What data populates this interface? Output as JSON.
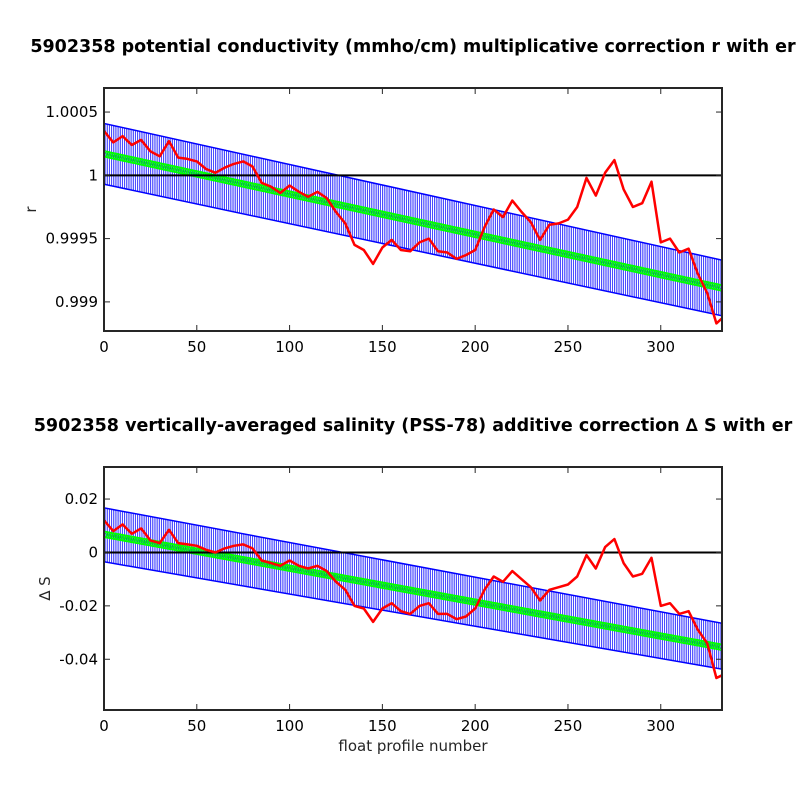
{
  "chart_data": [
    {
      "type": "line",
      "title": "5902358 potential conductivity (mmho/cm) multiplicative correction r with er",
      "xlabel": "",
      "ylabel": "r",
      "xlim": [
        0,
        333
      ],
      "ylim": [
        0.99877,
        1.00069
      ],
      "xticks": [
        "0",
        "50",
        "100",
        "150",
        "200",
        "250",
        "300"
      ],
      "yticks": [
        "0.999",
        "0.9995",
        "1",
        "1.0005"
      ],
      "grid": false,
      "reference_line": 1.0,
      "colors": {
        "correction": "#ff0000",
        "fit": "#00ff00",
        "error": "#0000ff",
        "reference": "#000000"
      },
      "fit": {
        "x": [
          0,
          333
        ],
        "y": [
          1.00017,
          0.99911
        ]
      },
      "error_band": {
        "x": [
          0,
          333
        ],
        "upper": [
          1.00041,
          0.99933
        ],
        "lower": [
          0.99993,
          0.99889
        ]
      },
      "series": [
        {
          "x": [
            0,
            5,
            10,
            15,
            20,
            25,
            30,
            35,
            40,
            45,
            50,
            55,
            60,
            65,
            70,
            75,
            80,
            85,
            90,
            95,
            100,
            105,
            110,
            115,
            120,
            125,
            130,
            135,
            140,
            145,
            150,
            155,
            160,
            165,
            170,
            175,
            180,
            185,
            190,
            195,
            200,
            205,
            210,
            215,
            220,
            225,
            230,
            235,
            240,
            245,
            250,
            255,
            260,
            265,
            270,
            275,
            280,
            285,
            290,
            295,
            300,
            305,
            310,
            315,
            320,
            325,
            330,
            333
          ],
          "y": [
            1.00035,
            1.00026,
            1.00031,
            1.00024,
            1.00028,
            1.00019,
            1.00015,
            1.00027,
            1.00014,
            1.00013,
            1.00011,
            1.00005,
            1.00002,
            1.00006,
            1.00009,
            1.00011,
            1.00007,
            0.99994,
            0.99991,
            0.99986,
            0.99992,
            0.99987,
            0.99983,
            0.99987,
            0.99982,
            0.99971,
            0.99962,
            0.99945,
            0.99941,
            0.9993,
            0.99943,
            0.99949,
            0.99941,
            0.9994,
            0.99947,
            0.9995,
            0.9994,
            0.99939,
            0.99934,
            0.99937,
            0.99941,
            0.99959,
            0.99973,
            0.99967,
            0.9998,
            0.99971,
            0.99963,
            0.99949,
            0.99961,
            0.99962,
            0.99965,
            0.99975,
            0.99998,
            0.99984,
            1.00002,
            1.00012,
            0.99989,
            0.99975,
            0.99978,
            0.99995,
            0.99947,
            0.9995,
            0.99939,
            0.99942,
            0.99922,
            0.99907,
            0.99883,
            0.99887
          ]
        }
      ]
    },
    {
      "type": "line",
      "title": "5902358 vertically-averaged salinity (PSS-78) additive correction ∆ S with er",
      "xlabel": "float profile number",
      "ylabel": "∆ S",
      "xlim": [
        0,
        333
      ],
      "ylim": [
        -0.059,
        0.032
      ],
      "xticks": [
        "0",
        "50",
        "100",
        "150",
        "200",
        "250",
        "300"
      ],
      "yticks": [
        "-0.04",
        "-0.02",
        "0",
        "0.02"
      ],
      "grid": false,
      "reference_line": 0,
      "colors": {
        "correction": "#ff0000",
        "fit": "#00ff00",
        "error": "#0000ff",
        "reference": "#000000"
      },
      "fit": {
        "x": [
          0,
          333
        ],
        "y": [
          0.0068,
          -0.0355
        ]
      },
      "error_band": {
        "x": [
          0,
          333
        ],
        "upper": [
          0.0167,
          -0.0265
        ],
        "lower": [
          -0.0035,
          -0.0437
        ]
      },
      "series": [
        {
          "x": [
            0,
            5,
            10,
            15,
            20,
            25,
            30,
            35,
            40,
            45,
            50,
            55,
            60,
            65,
            70,
            75,
            80,
            85,
            90,
            95,
            100,
            105,
            110,
            115,
            120,
            125,
            130,
            135,
            140,
            145,
            150,
            155,
            160,
            165,
            170,
            175,
            180,
            185,
            190,
            195,
            200,
            205,
            210,
            215,
            220,
            225,
            230,
            235,
            240,
            245,
            250,
            255,
            260,
            265,
            270,
            275,
            280,
            285,
            290,
            295,
            300,
            305,
            310,
            315,
            320,
            325,
            330,
            333
          ],
          "y": [
            0.012,
            0.008,
            0.0105,
            0.007,
            0.009,
            0.0045,
            0.0035,
            0.0085,
            0.0035,
            0.003,
            0.0025,
            0.001,
            0.0,
            0.0015,
            0.0025,
            0.003,
            0.0015,
            -0.003,
            -0.004,
            -0.005,
            -0.003,
            -0.005,
            -0.006,
            -0.005,
            -0.007,
            -0.011,
            -0.014,
            -0.02,
            -0.021,
            -0.026,
            -0.021,
            -0.019,
            -0.022,
            -0.023,
            -0.02,
            -0.019,
            -0.023,
            -0.023,
            -0.025,
            -0.024,
            -0.021,
            -0.014,
            -0.009,
            -0.011,
            -0.007,
            -0.01,
            -0.013,
            -0.018,
            -0.014,
            -0.013,
            -0.012,
            -0.009,
            -0.001,
            -0.006,
            0.002,
            0.005,
            -0.004,
            -0.009,
            -0.008,
            -0.002,
            -0.02,
            -0.019,
            -0.023,
            -0.022,
            -0.029,
            -0.034,
            -0.047,
            -0.046
          ]
        }
      ]
    }
  ]
}
